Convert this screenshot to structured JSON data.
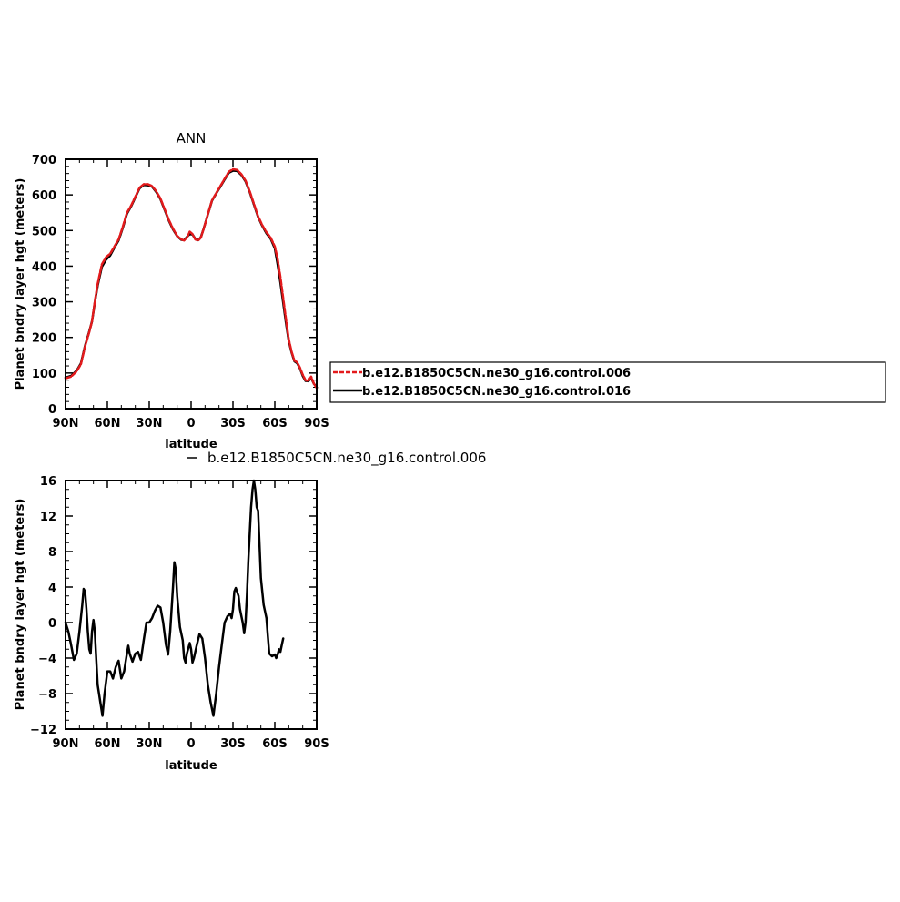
{
  "chart_data": [
    {
      "type": "line",
      "title": "ANN",
      "xlabel": "latitude",
      "ylabel": "Planet bndry layer hgt (meters)",
      "x_range": [
        90,
        -90
      ],
      "ylim": [
        0,
        700
      ],
      "x_ticks": [
        90,
        60,
        30,
        0,
        -30,
        -60,
        -90
      ],
      "x_tick_labels": [
        "90N",
        "60N",
        "30N",
        "0",
        "30S",
        "60S",
        "90S"
      ],
      "y_ticks": [
        0,
        100,
        200,
        300,
        400,
        500,
        600,
        700
      ],
      "y_tick_labels": [
        "0",
        "100",
        "200",
        "300",
        "400",
        "500",
        "600",
        "700"
      ],
      "grid": false,
      "legend": "right, outside plot",
      "series": [
        {
          "name": "b.e12.B1850C5CN.ne30_g16.control.006",
          "color": "#e31a1c",
          "dash": true,
          "points": [
            [
              90,
              85
            ],
            [
              86,
              90
            ],
            [
              82,
              105
            ],
            [
              79,
              125
            ],
            [
              76,
              175
            ],
            [
              73,
              215
            ],
            [
              71,
              245
            ],
            [
              69,
              300
            ],
            [
              67,
              350
            ],
            [
              64,
              405
            ],
            [
              61,
              425
            ],
            [
              58,
              435
            ],
            [
              55,
              455
            ],
            [
              52,
              475
            ],
            [
              49,
              510
            ],
            [
              46,
              550
            ],
            [
              43,
              570
            ],
            [
              40,
              595
            ],
            [
              37,
              620
            ],
            [
              34,
              630
            ],
            [
              31,
              630
            ],
            [
              28,
              625
            ],
            [
              25,
              610
            ],
            [
              22,
              590
            ],
            [
              19,
              560
            ],
            [
              16,
              530
            ],
            [
              13,
              505
            ],
            [
              10,
              485
            ],
            [
              7,
              475
            ],
            [
              5,
              472
            ],
            [
              3,
              480
            ],
            [
              1,
              497
            ],
            [
              -1,
              490
            ],
            [
              -3,
              475
            ],
            [
              -5,
              472
            ],
            [
              -7,
              480
            ],
            [
              -9,
              505
            ],
            [
              -12,
              545
            ],
            [
              -15,
              585
            ],
            [
              -18,
              605
            ],
            [
              -21,
              625
            ],
            [
              -24,
              645
            ],
            [
              -27,
              665
            ],
            [
              -30,
              672
            ],
            [
              -33,
              670
            ],
            [
              -36,
              658
            ],
            [
              -39,
              640
            ],
            [
              -42,
              610
            ],
            [
              -45,
              575
            ],
            [
              -48,
              540
            ],
            [
              -51,
              515
            ],
            [
              -54,
              495
            ],
            [
              -57,
              480
            ],
            [
              -60,
              455
            ],
            [
              -62,
              420
            ],
            [
              -64,
              370
            ],
            [
              -66,
              310
            ],
            [
              -68,
              250
            ],
            [
              -70,
              195
            ],
            [
              -72,
              160
            ],
            [
              -74,
              135
            ],
            [
              -76,
              130
            ],
            [
              -78,
              115
            ],
            [
              -80,
              95
            ],
            [
              -82,
              80
            ],
            [
              -84,
              78
            ],
            [
              -86,
              90
            ],
            [
              -88,
              70
            ],
            [
              -90,
              58
            ]
          ]
        },
        {
          "name": "b.e12.B1850C5CN.ne30_g16.control.016",
          "color": "#000000",
          "dash": false,
          "points": [
            [
              90,
              87
            ],
            [
              86,
              92
            ],
            [
              82,
              107
            ],
            [
              79,
              127
            ],
            [
              76,
              177
            ],
            [
              73,
              217
            ],
            [
              71,
              245
            ],
            [
              69,
              298
            ],
            [
              67,
              345
            ],
            [
              64,
              398
            ],
            [
              61,
              418
            ],
            [
              58,
              430
            ],
            [
              55,
              452
            ],
            [
              52,
              472
            ],
            [
              49,
              507
            ],
            [
              46,
              547
            ],
            [
              43,
              568
            ],
            [
              40,
              593
            ],
            [
              37,
              618
            ],
            [
              34,
              628
            ],
            [
              31,
              627
            ],
            [
              28,
              623
            ],
            [
              25,
              608
            ],
            [
              22,
              588
            ],
            [
              19,
              558
            ],
            [
              16,
              528
            ],
            [
              13,
              503
            ],
            [
              10,
              484
            ],
            [
              7,
              474
            ],
            [
              5,
              473
            ],
            [
              3,
              482
            ],
            [
              1,
              490
            ],
            [
              -1,
              489
            ],
            [
              -3,
              477
            ],
            [
              -5,
              473
            ],
            [
              -7,
              481
            ],
            [
              -9,
              505
            ],
            [
              -12,
              545
            ],
            [
              -15,
              584
            ],
            [
              -18,
              604
            ],
            [
              -21,
              623
            ],
            [
              -24,
              643
            ],
            [
              -27,
              662
            ],
            [
              -30,
              668
            ],
            [
              -33,
              667
            ],
            [
              -36,
              656
            ],
            [
              -39,
              638
            ],
            [
              -42,
              608
            ],
            [
              -45,
              573
            ],
            [
              -48,
              538
            ],
            [
              -51,
              513
            ],
            [
              -54,
              492
            ],
            [
              -57,
              477
            ],
            [
              -60,
              450
            ],
            [
              -62,
              405
            ],
            [
              -64,
              355
            ],
            [
              -66,
              297
            ],
            [
              -68,
              240
            ],
            [
              -70,
              190
            ],
            [
              -72,
              158
            ],
            [
              -74,
              133
            ],
            [
              -76,
              128
            ],
            [
              -78,
              113
            ],
            [
              -80,
              92
            ],
            [
              -82,
              78
            ],
            [
              -84,
              77
            ],
            [
              -86,
              86
            ],
            [
              -88,
              70
            ],
            [
              -90,
              60
            ]
          ]
        }
      ]
    },
    {
      "type": "line",
      "title": "b.e12.B1850C5CN.ne30_g16.control.006",
      "xlabel": "latitude",
      "ylabel": "Planet bndry layer hgt (meters)",
      "x_range": [
        90,
        -90
      ],
      "ylim": [
        -12,
        16
      ],
      "x_ticks": [
        90,
        60,
        30,
        0,
        -30,
        -60,
        -90
      ],
      "x_tick_labels": [
        "90N",
        "60N",
        "30N",
        "0",
        "30S",
        "60S",
        "90S"
      ],
      "y_ticks": [
        -12,
        -8,
        -4,
        0,
        4,
        8,
        12,
        16
      ],
      "y_tick_labels": [
        "−12",
        "−8",
        "−4",
        "0",
        "4",
        "8",
        "12",
        "16"
      ],
      "grid": false,
      "series": [
        {
          "color": "#000000",
          "points": [
            [
              90,
              0
            ],
            [
              88,
              -1
            ],
            [
              86,
              -2.5
            ],
            [
              84,
              -4.2
            ],
            [
              82,
              -3.5
            ],
            [
              80,
              -1
            ],
            [
              78,
              2
            ],
            [
              77,
              3.8
            ],
            [
              76,
              3.5
            ],
            [
              75,
              1.5
            ],
            [
              74,
              -1
            ],
            [
              73,
              -3
            ],
            [
              72,
              -3.5
            ],
            [
              71,
              -1
            ],
            [
              70,
              0.3
            ],
            [
              69,
              -1
            ],
            [
              68,
              -4
            ],
            [
              67,
              -7
            ],
            [
              65,
              -9
            ],
            [
              63.5,
              -10.5
            ],
            [
              62,
              -8
            ],
            [
              60,
              -5.5
            ],
            [
              58,
              -5.5
            ],
            [
              56,
              -6.3
            ],
            [
              54,
              -5
            ],
            [
              52,
              -4.3
            ],
            [
              50,
              -6.3
            ],
            [
              48,
              -5.5
            ],
            [
              46,
              -3.5
            ],
            [
              45,
              -2.6
            ],
            [
              44,
              -3.5
            ],
            [
              42,
              -4.4
            ],
            [
              40,
              -3.5
            ],
            [
              38,
              -3.3
            ],
            [
              36,
              -4.2
            ],
            [
              34,
              -2
            ],
            [
              32,
              0
            ],
            [
              30,
              0
            ],
            [
              28,
              0.5
            ],
            [
              26,
              1.3
            ],
            [
              24,
              1.9
            ],
            [
              22,
              1.7
            ],
            [
              20,
              0
            ],
            [
              18,
              -2.5
            ],
            [
              16.5,
              -3.6
            ],
            [
              15,
              -1
            ],
            [
              13,
              4
            ],
            [
              12,
              6.8
            ],
            [
              11,
              6
            ],
            [
              10,
              3
            ],
            [
              8,
              -0.5
            ],
            [
              6,
              -2
            ],
            [
              5,
              -4
            ],
            [
              4,
              -4.5
            ],
            [
              3,
              -3.5
            ],
            [
              1,
              -2.3
            ],
            [
              0,
              -3
            ],
            [
              -1,
              -4.5
            ],
            [
              -2,
              -4
            ],
            [
              -4,
              -2.6
            ],
            [
              -6,
              -1.3
            ],
            [
              -8,
              -1.8
            ],
            [
              -10,
              -4
            ],
            [
              -12,
              -7
            ],
            [
              -14,
              -9
            ],
            [
              -16,
              -10.5
            ],
            [
              -18,
              -8
            ],
            [
              -20,
              -5
            ],
            [
              -22,
              -2.5
            ],
            [
              -24,
              0
            ],
            [
              -26,
              0.7
            ],
            [
              -28,
              1
            ],
            [
              -29,
              0.5
            ],
            [
              -30,
              1.5
            ],
            [
              -31,
              3.5
            ],
            [
              -32,
              3.9
            ],
            [
              -34,
              3
            ],
            [
              -35,
              1.5
            ],
            [
              -37,
              0
            ],
            [
              -38,
              -1.2
            ],
            [
              -39,
              0
            ],
            [
              -40,
              3
            ],
            [
              -41,
              7
            ],
            [
              -42,
              10
            ],
            [
              -43,
              13
            ],
            [
              -44,
              15
            ],
            [
              -45,
              16
            ],
            [
              -46,
              15
            ],
            [
              -47,
              13
            ],
            [
              -48,
              12.6
            ],
            [
              -49,
              9
            ],
            [
              -50,
              5
            ],
            [
              -52,
              2
            ],
            [
              -54,
              0.5
            ],
            [
              -55,
              -1.5
            ],
            [
              -56,
              -3.5
            ],
            [
              -58,
              -3.8
            ],
            [
              -60,
              -3.6
            ],
            [
              -61,
              -4
            ],
            [
              -62,
              -3.6
            ],
            [
              -63,
              -3
            ],
            [
              -64,
              -3.3
            ],
            [
              -65,
              -2.5
            ],
            [
              -66,
              -1.8
            ]
          ]
        }
      ]
    }
  ]
}
